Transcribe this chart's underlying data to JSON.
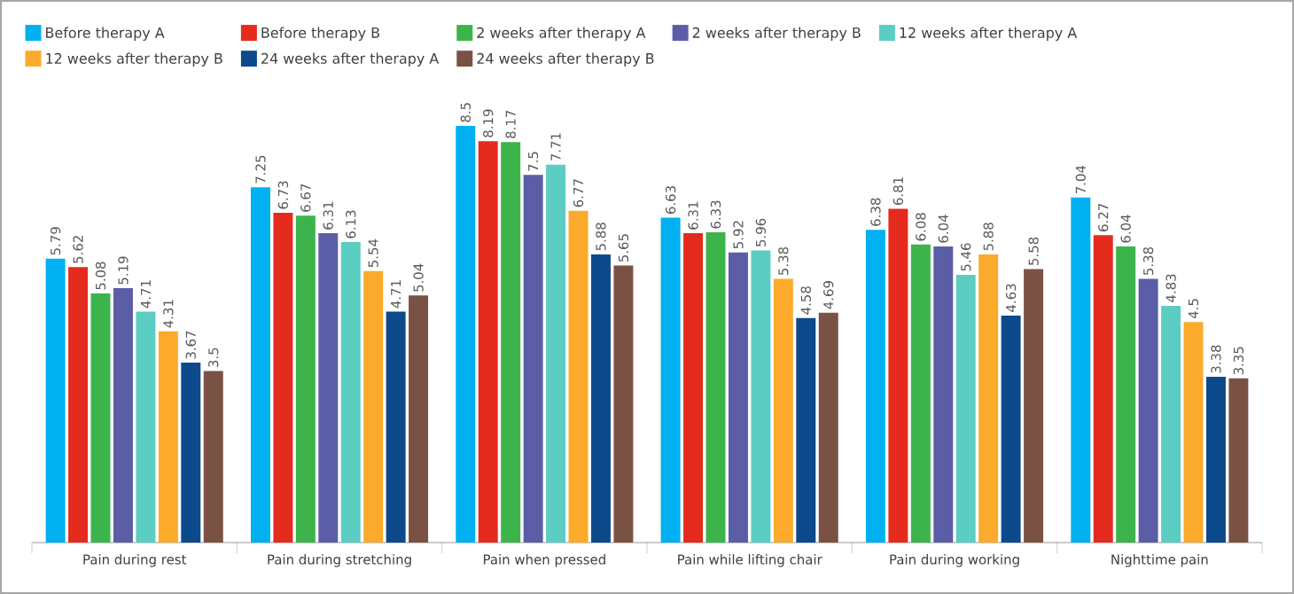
{
  "chart_data": {
    "type": "bar",
    "categories": [
      "Pain during rest",
      "Pain during stretching",
      "Pain when pressed",
      "Pain while lifting chair",
      "Pain during working",
      "Nighttime pain"
    ],
    "series": [
      {
        "name": "Before therapy A",
        "color": "#00b0f0",
        "values": [
          5.79,
          7.25,
          8.5,
          6.63,
          6.38,
          7.04
        ]
      },
      {
        "name": "Before therapy B",
        "color": "#e52b1e",
        "values": [
          5.62,
          6.73,
          8.19,
          6.31,
          6.81,
          6.27
        ]
      },
      {
        "name": "2 weeks after therapy A",
        "color": "#3cb44b",
        "values": [
          5.08,
          6.67,
          8.17,
          6.33,
          6.08,
          6.04
        ]
      },
      {
        "name": "2 weeks after therapy B",
        "color": "#5b5ea6",
        "values": [
          5.19,
          6.31,
          7.5,
          5.92,
          6.04,
          5.38
        ]
      },
      {
        "name": "12 weeks after therapy A",
        "color": "#5ccdc3",
        "values": [
          4.71,
          6.13,
          7.71,
          5.96,
          5.46,
          4.83
        ]
      },
      {
        "name": "12 weeks after therapy B",
        "color": "#fbaa2c",
        "values": [
          4.31,
          5.54,
          6.77,
          5.38,
          5.88,
          4.5
        ]
      },
      {
        "name": "24 weeks after therapy A",
        "color": "#0d4a8c",
        "values": [
          3.67,
          4.71,
          5.88,
          4.58,
          4.63,
          3.38
        ]
      },
      {
        "name": "24 weeks after therapy B",
        "color": "#7a5244",
        "values": [
          3.5,
          5.04,
          5.65,
          4.69,
          5.58,
          3.35
        ]
      }
    ],
    "data_labels": true,
    "legend": "top"
  }
}
